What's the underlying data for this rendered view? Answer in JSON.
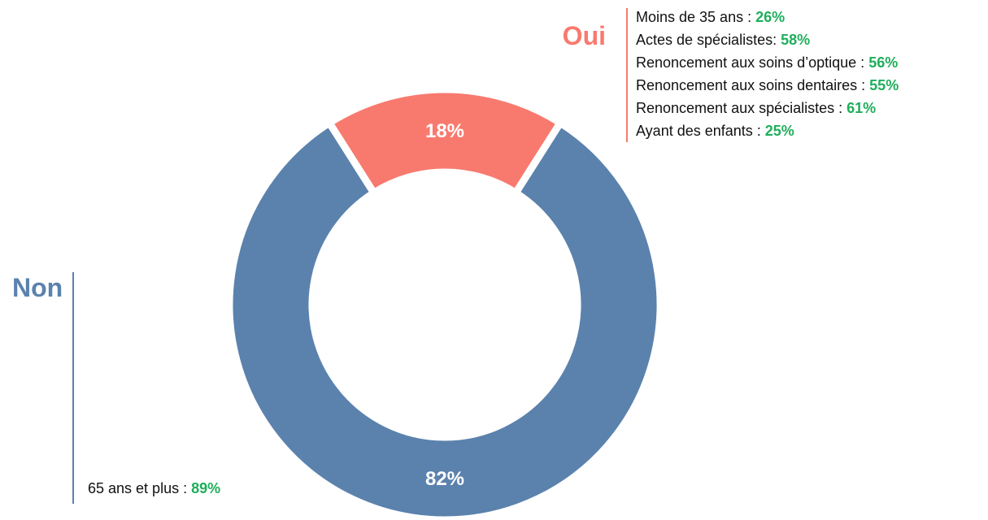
{
  "chart_data": {
    "type": "donut",
    "categories": [
      "Oui",
      "Non"
    ],
    "values": [
      18,
      82
    ],
    "value_labels": [
      "18%",
      "82%"
    ],
    "colors": [
      "#f87a6e",
      "#5b82ad"
    ],
    "detail_value_color": "#1fae5b",
    "details": [
      [
        {
          "text": "Moins de 35 ans :",
          "value": "26%"
        },
        {
          "text": "Actes de spécialistes:",
          "value": "58%"
        },
        {
          "text": "Renoncement aux soins d’optique :",
          "value": "56%"
        },
        {
          "text": "Renoncement aux soins dentaires :",
          "value": "55%"
        },
        {
          "text": "Renoncement aux spécialistes :",
          "value": "61%"
        },
        {
          "text": "Ayant des enfants :",
          "value": "25%"
        }
      ],
      [
        {
          "text": "65 ans et plus :",
          "value": "89%"
        }
      ]
    ]
  }
}
